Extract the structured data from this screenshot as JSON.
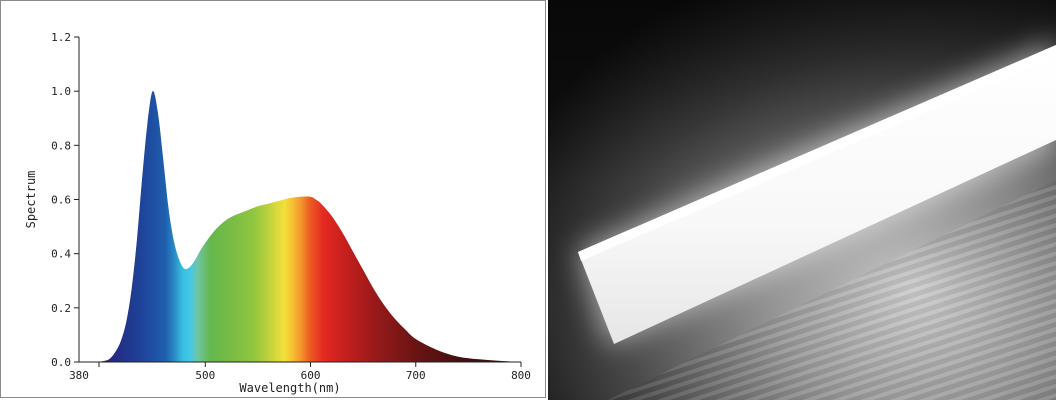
{
  "chart_data": {
    "type": "area",
    "title": "",
    "xlabel": "Wavelength(nm)",
    "ylabel": "Spectrum",
    "xlim": [
      380,
      800
    ],
    "ylim": [
      0,
      1.2
    ],
    "x_ticks": [
      380,
      500,
      600,
      700,
      800
    ],
    "x_tick_labels": [
      "380",
      "500",
      "600",
      "700",
      "800"
    ],
    "y_ticks": [
      0.0,
      0.2,
      0.4,
      0.6,
      0.8,
      1.0,
      1.2
    ],
    "y_tick_labels": [
      "0.0",
      "0.2",
      "0.4",
      "0.6",
      "0.8",
      "1.0",
      "1.2"
    ],
    "fill": "visible-spectrum color gradient",
    "grid": false,
    "series": [
      {
        "x": [
          380,
          395,
          405,
          410,
          415,
          420,
          425,
          430,
          435,
          440,
          445,
          450,
          455,
          460,
          465,
          470,
          475,
          480,
          485,
          490,
          495,
          500,
          510,
          520,
          530,
          540,
          550,
          560,
          570,
          580,
          590,
          600,
          605,
          610,
          620,
          630,
          640,
          650,
          660,
          670,
          680,
          690,
          700,
          720,
          740,
          760,
          780,
          800
        ],
        "y": [
          0.0,
          0.0,
          0.005,
          0.015,
          0.04,
          0.08,
          0.15,
          0.27,
          0.45,
          0.68,
          0.88,
          1.0,
          0.92,
          0.75,
          0.57,
          0.45,
          0.38,
          0.345,
          0.35,
          0.375,
          0.41,
          0.44,
          0.49,
          0.525,
          0.545,
          0.56,
          0.575,
          0.585,
          0.595,
          0.605,
          0.61,
          0.61,
          0.6,
          0.585,
          0.54,
          0.48,
          0.41,
          0.34,
          0.27,
          0.21,
          0.16,
          0.12,
          0.085,
          0.045,
          0.02,
          0.01,
          0.004,
          0.0
        ]
      }
    ]
  },
  "photo": {
    "subject": "glowing LED tube light",
    "colors": {
      "background_dark": "#151515",
      "background_light": "#d8d8d8",
      "tube": "#f7f7f7"
    }
  }
}
